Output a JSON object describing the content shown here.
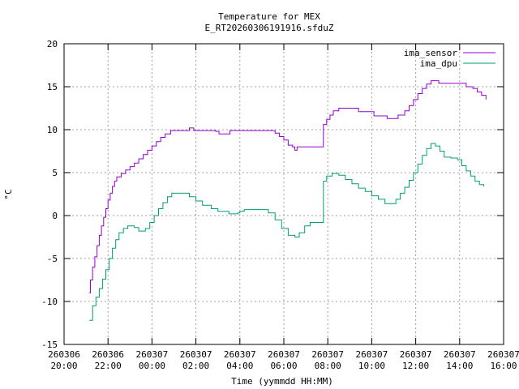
{
  "chart_data": {
    "type": "line",
    "title": "Temperature for MEX",
    "subtitle": "E_RT20260306191916.sfduZ",
    "xlabel": "Time (yymmdd HH:MM)",
    "ylabel": "°C",
    "ylim": [
      -15,
      20
    ],
    "yticks": [
      "-15",
      "-10",
      "-5",
      "0",
      "5",
      "10",
      "15",
      "20"
    ],
    "xlim_hours": [
      20,
      40
    ],
    "xticks": [
      {
        "hours": 20,
        "date": "260306",
        "time": "20:00"
      },
      {
        "hours": 22,
        "date": "260306",
        "time": "22:00"
      },
      {
        "hours": 24,
        "date": "260307",
        "time": "00:00"
      },
      {
        "hours": 26,
        "date": "260307",
        "time": "02:00"
      },
      {
        "hours": 28,
        "date": "260307",
        "time": "04:00"
      },
      {
        "hours": 30,
        "date": "260307",
        "time": "06:00"
      },
      {
        "hours": 32,
        "date": "260307",
        "time": "08:00"
      },
      {
        "hours": 34,
        "date": "260307",
        "time": "10:00"
      },
      {
        "hours": 36,
        "date": "260307",
        "time": "12:00"
      },
      {
        "hours": 38,
        "date": "260307",
        "time": "14:00"
      },
      {
        "hours": 40,
        "date": "260307",
        "time": "16:00"
      }
    ],
    "grid": true,
    "legend": "top-right",
    "series": [
      {
        "name": "ima_sensor",
        "color": "#9400d3",
        "points": [
          [
            21.15,
            -9.0
          ],
          [
            21.2,
            -7.5
          ],
          [
            21.3,
            -6.0
          ],
          [
            21.4,
            -4.8
          ],
          [
            21.5,
            -3.5
          ],
          [
            21.6,
            -2.3
          ],
          [
            21.7,
            -1.2
          ],
          [
            21.8,
            -0.2
          ],
          [
            21.9,
            0.8
          ],
          [
            22.0,
            1.8
          ],
          [
            22.1,
            2.6
          ],
          [
            22.2,
            3.4
          ],
          [
            22.3,
            4.0
          ],
          [
            22.4,
            4.5
          ],
          [
            22.6,
            4.9
          ],
          [
            22.8,
            5.3
          ],
          [
            23.0,
            5.7
          ],
          [
            23.2,
            6.1
          ],
          [
            23.4,
            6.6
          ],
          [
            23.6,
            7.1
          ],
          [
            23.8,
            7.6
          ],
          [
            24.0,
            8.1
          ],
          [
            24.2,
            8.6
          ],
          [
            24.4,
            9.1
          ],
          [
            24.6,
            9.5
          ],
          [
            24.85,
            9.9
          ],
          [
            25.5,
            9.9
          ],
          [
            25.7,
            10.2
          ],
          [
            25.9,
            9.9
          ],
          [
            26.5,
            9.9
          ],
          [
            26.9,
            9.8
          ],
          [
            27.05,
            9.5
          ],
          [
            27.5,
            9.5
          ],
          [
            27.55,
            9.9
          ],
          [
            28.0,
            9.9
          ],
          [
            29.5,
            9.9
          ],
          [
            29.6,
            9.6
          ],
          [
            29.8,
            9.2
          ],
          [
            30.0,
            8.8
          ],
          [
            30.2,
            8.2
          ],
          [
            30.4,
            8.0
          ],
          [
            30.5,
            7.6
          ],
          [
            30.6,
            8.0
          ],
          [
            31.0,
            8.0
          ],
          [
            31.5,
            8.0
          ],
          [
            31.75,
            8.0
          ],
          [
            31.8,
            10.6
          ],
          [
            31.95,
            11.2
          ],
          [
            32.1,
            11.7
          ],
          [
            32.25,
            12.2
          ],
          [
            32.5,
            12.5
          ],
          [
            33.0,
            12.5
          ],
          [
            33.35,
            12.5
          ],
          [
            33.4,
            12.1
          ],
          [
            34.0,
            12.1
          ],
          [
            34.1,
            11.6
          ],
          [
            34.6,
            11.6
          ],
          [
            34.7,
            11.3
          ],
          [
            35.1,
            11.3
          ],
          [
            35.2,
            11.7
          ],
          [
            35.5,
            12.2
          ],
          [
            35.7,
            12.8
          ],
          [
            35.9,
            13.5
          ],
          [
            36.1,
            14.2
          ],
          [
            36.3,
            14.8
          ],
          [
            36.5,
            15.3
          ],
          [
            36.7,
            15.7
          ],
          [
            37.0,
            15.7
          ],
          [
            37.05,
            15.4
          ],
          [
            38.2,
            15.4
          ],
          [
            38.3,
            15.0
          ],
          [
            38.6,
            14.8
          ],
          [
            38.8,
            14.4
          ],
          [
            39.0,
            14.0
          ],
          [
            39.2,
            13.5
          ]
        ]
      },
      {
        "name": "ima_dpu",
        "color": "#009e73",
        "points": [
          [
            21.15,
            -12.2
          ],
          [
            21.3,
            -10.5
          ],
          [
            21.45,
            -9.5
          ],
          [
            21.6,
            -8.5
          ],
          [
            21.75,
            -7.4
          ],
          [
            21.9,
            -6.3
          ],
          [
            22.05,
            -5.0
          ],
          [
            22.2,
            -3.8
          ],
          [
            22.35,
            -2.8
          ],
          [
            22.5,
            -2.0
          ],
          [
            22.7,
            -1.5
          ],
          [
            22.9,
            -1.2
          ],
          [
            23.2,
            -1.4
          ],
          [
            23.4,
            -1.8
          ],
          [
            23.7,
            -1.5
          ],
          [
            23.9,
            -0.8
          ],
          [
            24.1,
            0.0
          ],
          [
            24.3,
            0.8
          ],
          [
            24.5,
            1.5
          ],
          [
            24.7,
            2.2
          ],
          [
            24.9,
            2.6
          ],
          [
            25.4,
            2.6
          ],
          [
            25.7,
            2.2
          ],
          [
            26.0,
            1.7
          ],
          [
            26.3,
            1.2
          ],
          [
            26.7,
            0.8
          ],
          [
            27.0,
            0.5
          ],
          [
            27.5,
            0.2
          ],
          [
            27.9,
            0.3
          ],
          [
            28.0,
            0.5
          ],
          [
            28.2,
            0.7
          ],
          [
            29.0,
            0.7
          ],
          [
            29.3,
            0.3
          ],
          [
            29.6,
            -0.5
          ],
          [
            29.9,
            -1.5
          ],
          [
            30.2,
            -2.3
          ],
          [
            30.5,
            -2.5
          ],
          [
            30.7,
            -2.0
          ],
          [
            30.95,
            -1.2
          ],
          [
            31.2,
            -0.8
          ],
          [
            31.5,
            -0.8
          ],
          [
            31.75,
            -0.8
          ],
          [
            31.8,
            4.0
          ],
          [
            31.95,
            4.6
          ],
          [
            32.2,
            4.9
          ],
          [
            32.5,
            4.7
          ],
          [
            32.8,
            4.2
          ],
          [
            33.1,
            3.7
          ],
          [
            33.4,
            3.2
          ],
          [
            33.7,
            2.8
          ],
          [
            34.0,
            2.3
          ],
          [
            34.3,
            1.9
          ],
          [
            34.6,
            1.4
          ],
          [
            34.9,
            1.4
          ],
          [
            35.1,
            1.9
          ],
          [
            35.3,
            2.6
          ],
          [
            35.5,
            3.3
          ],
          [
            35.7,
            4.1
          ],
          [
            35.9,
            5.0
          ],
          [
            36.1,
            6.0
          ],
          [
            36.3,
            7.0
          ],
          [
            36.5,
            7.8
          ],
          [
            36.7,
            8.4
          ],
          [
            36.9,
            8.1
          ],
          [
            37.1,
            7.5
          ],
          [
            37.3,
            6.8
          ],
          [
            37.6,
            6.7
          ],
          [
            37.9,
            6.5
          ],
          [
            38.1,
            5.8
          ],
          [
            38.3,
            5.2
          ],
          [
            38.5,
            4.6
          ],
          [
            38.7,
            4.0
          ],
          [
            38.9,
            3.6
          ],
          [
            39.1,
            3.4
          ]
        ]
      }
    ]
  }
}
